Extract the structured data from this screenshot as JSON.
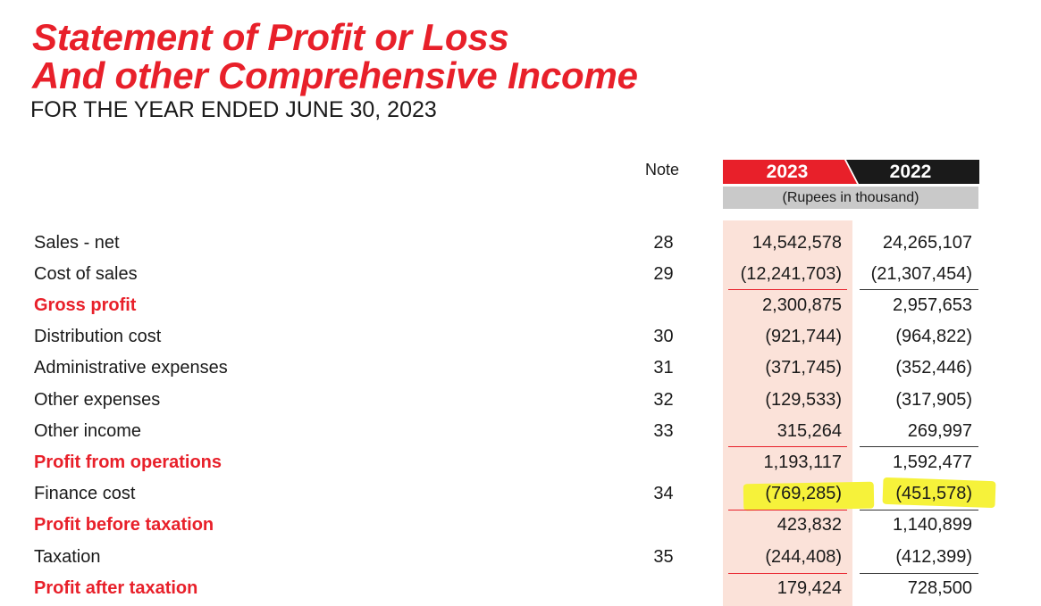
{
  "header": {
    "title_line1": "Statement of Profit or Loss",
    "title_line2": "And other Comprehensive Income",
    "subtitle": "FOR THE YEAR ENDED JUNE 30, 2023"
  },
  "columns": {
    "note": "Note",
    "year_current": "2023",
    "year_prior": "2022",
    "unit": "(Rupees in thousand)"
  },
  "colors": {
    "accent_red": "#e8202a",
    "dark": "#1a1a1a",
    "shade": "#fbe2d9",
    "highlight": "#f6f23a"
  },
  "rows": [
    {
      "label": "Sales - net",
      "note": "28",
      "y2023": "14,542,578",
      "y2022": "24,265,107",
      "bold": false
    },
    {
      "label": "Cost of sales",
      "note": "29",
      "y2023": "(12,241,703)",
      "y2022": "(21,307,454)",
      "bold": false
    },
    {
      "label": "Gross profit",
      "note": "",
      "y2023": "2,300,875",
      "y2022": "2,957,653",
      "bold": true
    },
    {
      "label": "Distribution cost",
      "note": "30",
      "y2023": "(921,744)",
      "y2022": "(964,822)",
      "bold": false
    },
    {
      "label": "Administrative expenses",
      "note": "31",
      "y2023": "(371,745)",
      "y2022": "(352,446)",
      "bold": false
    },
    {
      "label": "Other expenses",
      "note": "32",
      "y2023": "(129,533)",
      "y2022": "(317,905)",
      "bold": false
    },
    {
      "label": "Other income",
      "note": "33",
      "y2023": "315,264",
      "y2022": "269,997",
      "bold": false
    },
    {
      "label": "Profit from operations",
      "note": "",
      "y2023": "1,193,117",
      "y2022": "1,592,477",
      "bold": true
    },
    {
      "label": "Finance cost",
      "note": "34",
      "y2023": "(769,285)",
      "y2022": "(451,578)",
      "bold": false,
      "highlighted": true
    },
    {
      "label": "Profit before taxation",
      "note": "",
      "y2023": "423,832",
      "y2022": "1,140,899",
      "bold": true
    },
    {
      "label": "Taxation",
      "note": "35",
      "y2023": "(244,408)",
      "y2022": "(412,399)",
      "bold": false
    },
    {
      "label": "Profit after taxation",
      "note": "",
      "y2023": "179,424",
      "y2022": "728,500",
      "bold": true
    }
  ]
}
